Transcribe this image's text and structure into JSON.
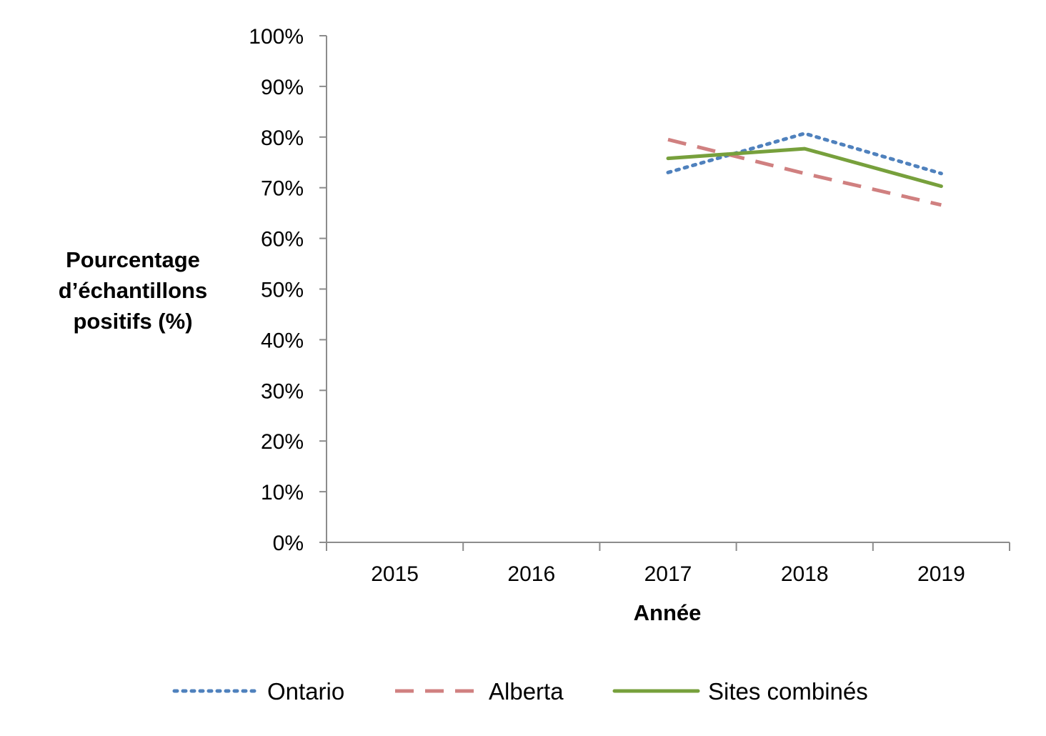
{
  "chart_data": {
    "type": "line",
    "title": "",
    "xlabel": "Année",
    "ylabel_lines": [
      "Pourcentage",
      "d’échantillons",
      "positifs (%)"
    ],
    "categories": [
      "2015",
      "2016",
      "2017",
      "2018",
      "2019"
    ],
    "y_ticks": [
      "0%",
      "10%",
      "20%",
      "30%",
      "40%",
      "50%",
      "60%",
      "70%",
      "80%",
      "90%",
      "100%"
    ],
    "ylim": [
      0,
      100
    ],
    "grid": false,
    "legend_position": "bottom",
    "series": [
      {
        "name": "Ontario",
        "values": [
          null,
          null,
          73,
          80.7,
          72.8
        ],
        "color": "#4f81bd",
        "dash": "dotted"
      },
      {
        "name": "Alberta",
        "values": [
          null,
          null,
          79.5,
          72.8,
          66.6
        ],
        "color": "#d08080",
        "dash": "dashed"
      },
      {
        "name": "Sites combinés",
        "values": [
          null,
          null,
          75.8,
          77.7,
          70.3
        ],
        "color": "#77a03c",
        "dash": "solid"
      }
    ]
  }
}
